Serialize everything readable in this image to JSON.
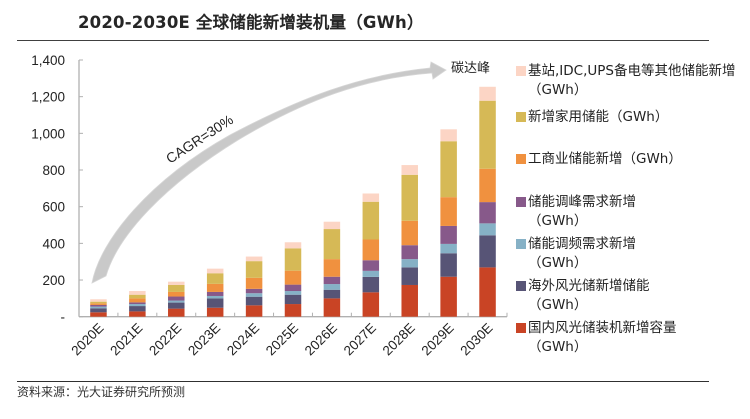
{
  "title": "2020-2030E 全球储能新增装机量（GWh）",
  "source": "资料来源：光大证券研究所预测",
  "annotations": {
    "cagr": "CAGR=30%",
    "arrow_label": "碳达峰"
  },
  "chart_data": {
    "type": "bar",
    "stacked": true,
    "title": "2020-2030E 全球储能新增装机量（GWh）",
    "xlabel": "",
    "ylabel": "",
    "ylim": [
      0,
      1400
    ],
    "yticks": [
      0,
      200,
      400,
      600,
      800,
      1000,
      1200,
      1400
    ],
    "ytick_labels": [
      "-",
      "200",
      "400",
      "600",
      "800",
      "1,000",
      "1,200",
      "1,400"
    ],
    "grid": false,
    "legend_position": "right",
    "categories": [
      "2020E",
      "2021E",
      "2022E",
      "2023E",
      "2024E",
      "2025E",
      "2026E",
      "2027E",
      "2028E",
      "2029E",
      "2030E"
    ],
    "series": [
      {
        "name": "国内风光储装机新增容量（GWh）",
        "color": "#C94425",
        "values": [
          24,
          29,
          44,
          49,
          62,
          69,
          100,
          133,
          173,
          218,
          269
        ]
      },
      {
        "name": "海外风光储新增储能（GWh）",
        "color": "#575476",
        "values": [
          22,
          29,
          33,
          51,
          47,
          51,
          47,
          84,
          96,
          128,
          175
        ]
      },
      {
        "name": "储能调频需求新增（GWh）",
        "color": "#86B1C6",
        "values": [
          9,
          11,
          11,
          13,
          19,
          20,
          31,
          33,
          45,
          51,
          65
        ]
      },
      {
        "name": "储能调峰需求新增（GWh）",
        "color": "#87598A",
        "values": [
          9,
          9,
          22,
          22,
          24,
          35,
          40,
          58,
          76,
          98,
          116
        ]
      },
      {
        "name": "工商业储能新增（GWh）",
        "color": "#F0913F",
        "values": [
          9,
          22,
          25,
          44,
          60,
          76,
          96,
          113,
          133,
          157,
          182
        ]
      },
      {
        "name": "新增家用储能（GWh）",
        "color": "#D6B956",
        "values": [
          9,
          20,
          38,
          58,
          91,
          122,
          164,
          206,
          251,
          305,
          371
        ]
      },
      {
        "name": "基站,IDC,UPS备电等其他储能新增（GWh）",
        "color": "#FCD5C5",
        "values": [
          13,
          20,
          18,
          25,
          25,
          33,
          40,
          45,
          53,
          65,
          76
        ]
      }
    ],
    "annotations": [
      "CAGR=30%",
      "碳达峰"
    ]
  },
  "legend": [
    {
      "label": "基站,IDC,UPS备电等其他储能新增（GWh）",
      "color": "#FCD5C5"
    },
    {
      "label": "新增家用储能（GWh）",
      "color": "#D6B956"
    },
    {
      "label": "工商业储能新增（GWh）",
      "color": "#F0913F"
    },
    {
      "label": "储能调峰需求新增（GWh）",
      "color": "#87598A"
    },
    {
      "label": "储能调频需求新增（GWh）",
      "color": "#86B1C6"
    },
    {
      "label": "海外风光储新增储能（GWh）",
      "color": "#575476"
    },
    {
      "label": "国内风光储装机新增容量（GWh）",
      "color": "#C94425"
    }
  ]
}
